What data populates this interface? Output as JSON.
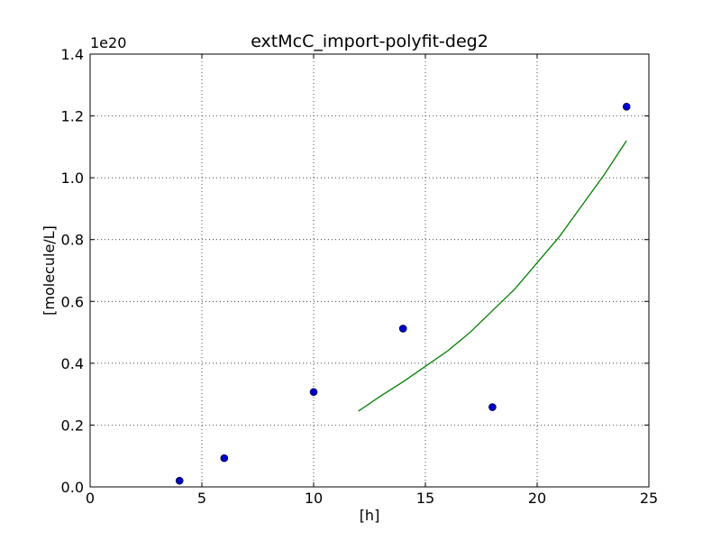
{
  "chart_data": {
    "type": "scatter",
    "title": "extMcC_import-polyfit-deg2",
    "xlabel": "[h]",
    "ylabel": "[molecule/L]",
    "y_scale_label": "1e20",
    "xlim": [
      0,
      25
    ],
    "ylim": [
      0,
      1.4
    ],
    "x_ticks": [
      0,
      5,
      10,
      15,
      20,
      25
    ],
    "y_ticks": [
      0.0,
      0.2,
      0.4,
      0.6,
      0.8,
      1.0,
      1.2,
      1.4
    ],
    "x_tick_labels": [
      "0",
      "5",
      "10",
      "15",
      "20",
      "25"
    ],
    "y_tick_labels": [
      "0.0",
      "0.2",
      "0.4",
      "0.6",
      "0.8",
      "1.0",
      "1.2",
      "1.4"
    ],
    "grid": true,
    "series": [
      {
        "type": "scatter",
        "color": "#0000cc",
        "x": [
          4,
          6,
          10,
          14,
          18,
          24
        ],
        "y": [
          0.02,
          0.093,
          0.307,
          0.512,
          0.258,
          1.23
        ]
      },
      {
        "type": "line",
        "color": "#008000",
        "x": [
          12,
          13,
          14,
          15,
          16,
          17,
          18,
          19,
          20,
          21,
          22,
          23,
          24
        ],
        "y": [
          0.245,
          0.294,
          0.34,
          0.39,
          0.44,
          0.5,
          0.57,
          0.64,
          0.725,
          0.81,
          0.91,
          1.01,
          1.12
        ]
      }
    ]
  }
}
